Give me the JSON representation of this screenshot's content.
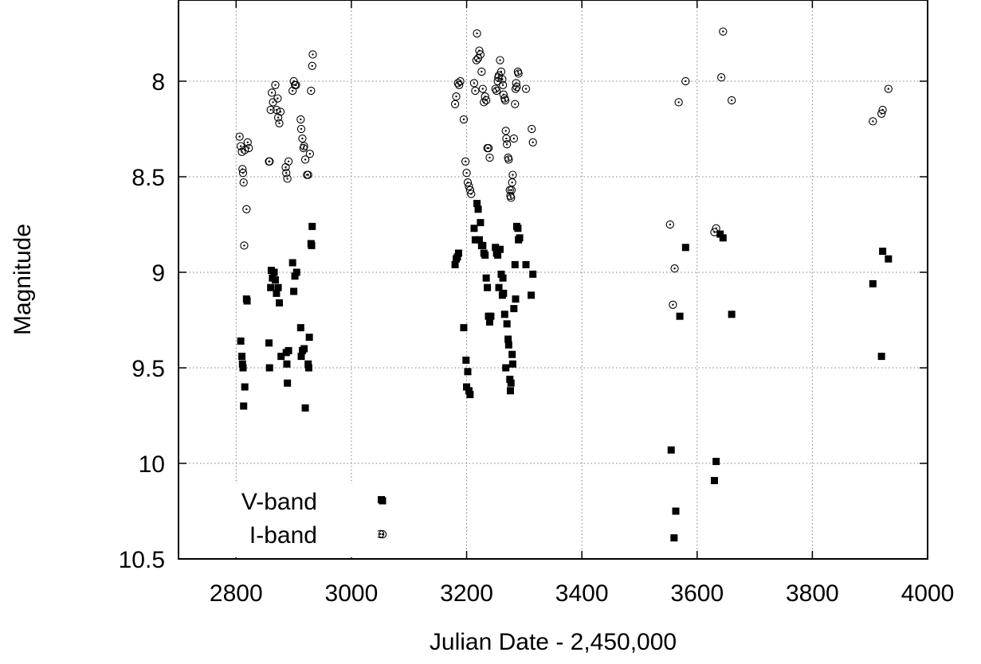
{
  "chart_data": {
    "type": "scatter",
    "title": "",
    "xlabel": "Julian Date - 2,450,000",
    "ylabel": "Magnitude",
    "xlim": [
      2700,
      4000
    ],
    "ylim": [
      10.5,
      7.6
    ],
    "y_inverted": true,
    "grid": true,
    "legend_position": "bottom-left",
    "x_ticks": [
      2800,
      3000,
      3200,
      3400,
      3600,
      3800,
      4000
    ],
    "x_tick_labels": [
      "2800",
      "3000",
      "3200",
      "3400",
      "3600",
      "3800",
      "4000"
    ],
    "y_ticks": [
      8,
      8.5,
      9,
      9.5,
      10,
      10.5
    ],
    "y_tick_labels": [
      "8",
      "8.5",
      "9",
      "9.5",
      "10",
      "10.5"
    ],
    "series": [
      {
        "name": "V-band",
        "marker": "filled-square",
        "color": "#000000",
        "points": [
          [
            2808,
            9.36
          ],
          [
            2810,
            9.44
          ],
          [
            2811,
            9.48
          ],
          [
            2812,
            9.5
          ],
          [
            2813,
            9.7
          ],
          [
            2815,
            9.6
          ],
          [
            2818,
            9.14
          ],
          [
            2819,
            9.15
          ],
          [
            2857,
            9.37
          ],
          [
            2858,
            9.5
          ],
          [
            2860,
            9.08
          ],
          [
            2861,
            8.99
          ],
          [
            2863,
            9.03
          ],
          [
            2866,
            9.0
          ],
          [
            2868,
            9.04
          ],
          [
            2870,
            9.11
          ],
          [
            2873,
            9.08
          ],
          [
            2875,
            9.16
          ],
          [
            2878,
            9.44
          ],
          [
            2887,
            9.42
          ],
          [
            2888,
            9.48
          ],
          [
            2889,
            9.58
          ],
          [
            2891,
            9.41
          ],
          [
            2898,
            8.95
          ],
          [
            2900,
            9.1
          ],
          [
            2902,
            9.02
          ],
          [
            2905,
            9.0
          ],
          [
            2912,
            9.29
          ],
          [
            2913,
            9.44
          ],
          [
            2915,
            9.41
          ],
          [
            2918,
            9.4
          ],
          [
            2920,
            9.71
          ],
          [
            2925,
            9.48
          ],
          [
            2926,
            9.5
          ],
          [
            2927,
            9.34
          ],
          [
            2930,
            8.85
          ],
          [
            2931,
            8.86
          ],
          [
            2932,
            8.76
          ],
          [
            3052,
            10.19
          ],
          [
            3180,
            8.96
          ],
          [
            3182,
            8.93
          ],
          [
            3184,
            8.92
          ],
          [
            3186,
            8.9
          ],
          [
            3195,
            9.29
          ],
          [
            3199,
            9.46
          ],
          [
            3200,
            9.6
          ],
          [
            3202,
            9.52
          ],
          [
            3204,
            9.62
          ],
          [
            3206,
            9.64
          ],
          [
            3213,
            8.77
          ],
          [
            3215,
            8.83
          ],
          [
            3218,
            8.64
          ],
          [
            3220,
            8.67
          ],
          [
            3222,
            8.83
          ],
          [
            3224,
            8.74
          ],
          [
            3226,
            8.86
          ],
          [
            3228,
            8.86
          ],
          [
            3230,
            8.9
          ],
          [
            3232,
            8.91
          ],
          [
            3234,
            9.03
          ],
          [
            3236,
            9.08
          ],
          [
            3238,
            9.23
          ],
          [
            3240,
            9.26
          ],
          [
            3242,
            9.23
          ],
          [
            3250,
            8.87
          ],
          [
            3252,
            8.9
          ],
          [
            3254,
            8.91
          ],
          [
            3256,
            9.08
          ],
          [
            3258,
            8.88
          ],
          [
            3260,
            9.01
          ],
          [
            3262,
            9.12
          ],
          [
            3263,
            9.03
          ],
          [
            3264,
            9.11
          ],
          [
            3266,
            9.22
          ],
          [
            3268,
            9.5
          ],
          [
            3270,
            9.27
          ],
          [
            3272,
            9.35
          ],
          [
            3273,
            9.38
          ],
          [
            3275,
            9.56
          ],
          [
            3276,
            9.62
          ],
          [
            3277,
            9.58
          ],
          [
            3279,
            9.43
          ],
          [
            3280,
            9.48
          ],
          [
            3282,
            9.19
          ],
          [
            3284,
            8.96
          ],
          [
            3285,
            9.14
          ],
          [
            3287,
            8.76
          ],
          [
            3289,
            8.77
          ],
          [
            3290,
            8.83
          ],
          [
            3292,
            8.82
          ],
          [
            3303,
            8.96
          ],
          [
            3312,
            9.12
          ],
          [
            3315,
            9.01
          ],
          [
            3555,
            9.93
          ],
          [
            3560,
            10.39
          ],
          [
            3563,
            10.25
          ],
          [
            3570,
            9.23
          ],
          [
            3580,
            8.87
          ],
          [
            3630,
            10.09
          ],
          [
            3633,
            9.99
          ],
          [
            3640,
            8.8
          ],
          [
            3645,
            8.82
          ],
          [
            3660,
            9.22
          ],
          [
            3905,
            9.06
          ],
          [
            3920,
            9.44
          ],
          [
            3922,
            8.89
          ],
          [
            3932,
            8.93
          ]
        ]
      },
      {
        "name": "I-band",
        "marker": "open-circle-dot",
        "color": "#000000",
        "points": [
          [
            2806,
            8.29
          ],
          [
            2808,
            8.34
          ],
          [
            2810,
            8.37
          ],
          [
            2811,
            8.46
          ],
          [
            2812,
            8.48
          ],
          [
            2813,
            8.53
          ],
          [
            2814,
            8.86
          ],
          [
            2815,
            8.36
          ],
          [
            2818,
            8.67
          ],
          [
            2820,
            8.32
          ],
          [
            2822,
            8.35
          ],
          [
            2857,
            8.42
          ],
          [
            2858,
            8.42
          ],
          [
            2860,
            8.15
          ],
          [
            2862,
            8.06
          ],
          [
            2864,
            8.11
          ],
          [
            2868,
            8.02
          ],
          [
            2870,
            8.15
          ],
          [
            2872,
            8.09
          ],
          [
            2873,
            8.19
          ],
          [
            2875,
            8.22
          ],
          [
            2877,
            8.16
          ],
          [
            2886,
            8.45
          ],
          [
            2887,
            8.48
          ],
          [
            2889,
            8.51
          ],
          [
            2891,
            8.42
          ],
          [
            2898,
            8.05
          ],
          [
            2900,
            8.0
          ],
          [
            2902,
            8.02
          ],
          [
            2904,
            8.02
          ],
          [
            2912,
            8.2
          ],
          [
            2913,
            8.25
          ],
          [
            2915,
            8.3
          ],
          [
            2917,
            8.35
          ],
          [
            2918,
            8.34
          ],
          [
            2920,
            8.41
          ],
          [
            2923,
            8.49
          ],
          [
            2925,
            8.49
          ],
          [
            2928,
            8.38
          ],
          [
            2930,
            8.05
          ],
          [
            2932,
            7.92
          ],
          [
            2933,
            7.86
          ],
          [
            3050,
            10.37
          ],
          [
            3180,
            8.12
          ],
          [
            3182,
            8.08
          ],
          [
            3185,
            8.01
          ],
          [
            3187,
            8.02
          ],
          [
            3189,
            8.0
          ],
          [
            3195,
            8.2
          ],
          [
            3198,
            8.42
          ],
          [
            3200,
            8.48
          ],
          [
            3202,
            8.53
          ],
          [
            3204,
            8.55
          ],
          [
            3206,
            8.57
          ],
          [
            3208,
            8.59
          ],
          [
            3213,
            8.01
          ],
          [
            3215,
            8.05
          ],
          [
            3217,
            7.89
          ],
          [
            3218,
            7.75
          ],
          [
            3220,
            7.88
          ],
          [
            3222,
            7.84
          ],
          [
            3224,
            7.86
          ],
          [
            3226,
            7.95
          ],
          [
            3228,
            8.04
          ],
          [
            3230,
            8.11
          ],
          [
            3232,
            8.08
          ],
          [
            3234,
            8.1
          ],
          [
            3236,
            8.35
          ],
          [
            3238,
            8.35
          ],
          [
            3240,
            8.4
          ],
          [
            3250,
            8.04
          ],
          [
            3252,
            8.05
          ],
          [
            3254,
            8.0
          ],
          [
            3255,
            7.98
          ],
          [
            3256,
            7.97
          ],
          [
            3258,
            7.89
          ],
          [
            3260,
            7.95
          ],
          [
            3262,
            7.99
          ],
          [
            3263,
            8.02
          ],
          [
            3264,
            8.07
          ],
          [
            3266,
            8.09
          ],
          [
            3267,
            8.1
          ],
          [
            3268,
            8.26
          ],
          [
            3269,
            8.3
          ],
          [
            3270,
            8.33
          ],
          [
            3272,
            8.4
          ],
          [
            3273,
            8.41
          ],
          [
            3275,
            8.57
          ],
          [
            3276,
            8.6
          ],
          [
            3277,
            8.61
          ],
          [
            3278,
            8.57
          ],
          [
            3279,
            8.53
          ],
          [
            3280,
            8.49
          ],
          [
            3282,
            8.3
          ],
          [
            3284,
            8.12
          ],
          [
            3285,
            8.04
          ],
          [
            3286,
            8.01
          ],
          [
            3287,
            8.03
          ],
          [
            3289,
            7.95
          ],
          [
            3290,
            7.96
          ],
          [
            3303,
            8.04
          ],
          [
            3313,
            8.25
          ],
          [
            3315,
            8.32
          ],
          [
            3553,
            8.75
          ],
          [
            3558,
            9.17
          ],
          [
            3561,
            8.98
          ],
          [
            3568,
            8.11
          ],
          [
            3580,
            8.0
          ],
          [
            3630,
            8.79
          ],
          [
            3633,
            8.77
          ],
          [
            3642,
            7.98
          ],
          [
            3645,
            7.74
          ],
          [
            3660,
            8.1
          ],
          [
            3905,
            8.21
          ],
          [
            3920,
            8.17
          ],
          [
            3922,
            8.15
          ],
          [
            3932,
            8.04
          ]
        ]
      }
    ]
  }
}
